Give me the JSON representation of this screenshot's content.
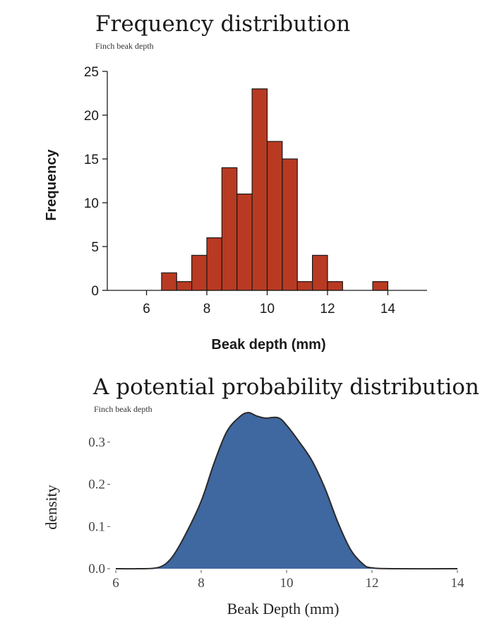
{
  "chart_data": [
    {
      "type": "bar",
      "title": "Frequency distribution",
      "subtitle": "Finch beak depth",
      "xlabel": "Beak depth (mm)",
      "ylabel": "Frequency",
      "xlim": [
        4.7,
        15.3
      ],
      "ylim": [
        0,
        25
      ],
      "xticks": [
        "6",
        "8",
        "10",
        "12",
        "14"
      ],
      "yticks": [
        "0",
        "5",
        "10",
        "15",
        "20",
        "25"
      ],
      "bin_width": 0.5,
      "bins": [
        {
          "start": 6.5,
          "value": 2
        },
        {
          "start": 7.0,
          "value": 1
        },
        {
          "start": 7.5,
          "value": 4
        },
        {
          "start": 8.0,
          "value": 6
        },
        {
          "start": 8.5,
          "value": 14
        },
        {
          "start": 9.0,
          "value": 11
        },
        {
          "start": 9.5,
          "value": 23
        },
        {
          "start": 10.0,
          "value": 17
        },
        {
          "start": 10.5,
          "value": 15
        },
        {
          "start": 11.0,
          "value": 1
        },
        {
          "start": 11.5,
          "value": 4
        },
        {
          "start": 12.0,
          "value": 1
        },
        {
          "start": 13.5,
          "value": 1
        }
      ],
      "bar_color": "#b83a22",
      "grid": false
    },
    {
      "type": "area",
      "title": "A potential probability distribution",
      "subtitle": "Finch beak depth",
      "xlabel": "Beak Depth (mm)",
      "ylabel": "density",
      "xlim": [
        5.9,
        14.0
      ],
      "ylim": [
        0,
        0.36
      ],
      "xticks": [
        "6",
        "8",
        "10",
        "12",
        "14"
      ],
      "yticks": [
        "0.0",
        "0.1",
        "0.2",
        "0.3"
      ],
      "x": [
        6.0,
        6.5,
        7.0,
        7.3,
        7.6,
        8.0,
        8.3,
        8.6,
        8.9,
        9.1,
        9.3,
        9.5,
        9.8,
        10.0,
        10.3,
        10.6,
        10.9,
        11.2,
        11.5,
        11.8,
        12.0,
        12.5,
        14.0
      ],
      "y": [
        0.0,
        0.0,
        0.003,
        0.025,
        0.075,
        0.16,
        0.25,
        0.325,
        0.36,
        0.37,
        0.362,
        0.357,
        0.358,
        0.34,
        0.3,
        0.255,
        0.19,
        0.11,
        0.045,
        0.01,
        0.002,
        0.0,
        0.0
      ],
      "fill_color": "#3f67a0",
      "grid": false
    }
  ]
}
